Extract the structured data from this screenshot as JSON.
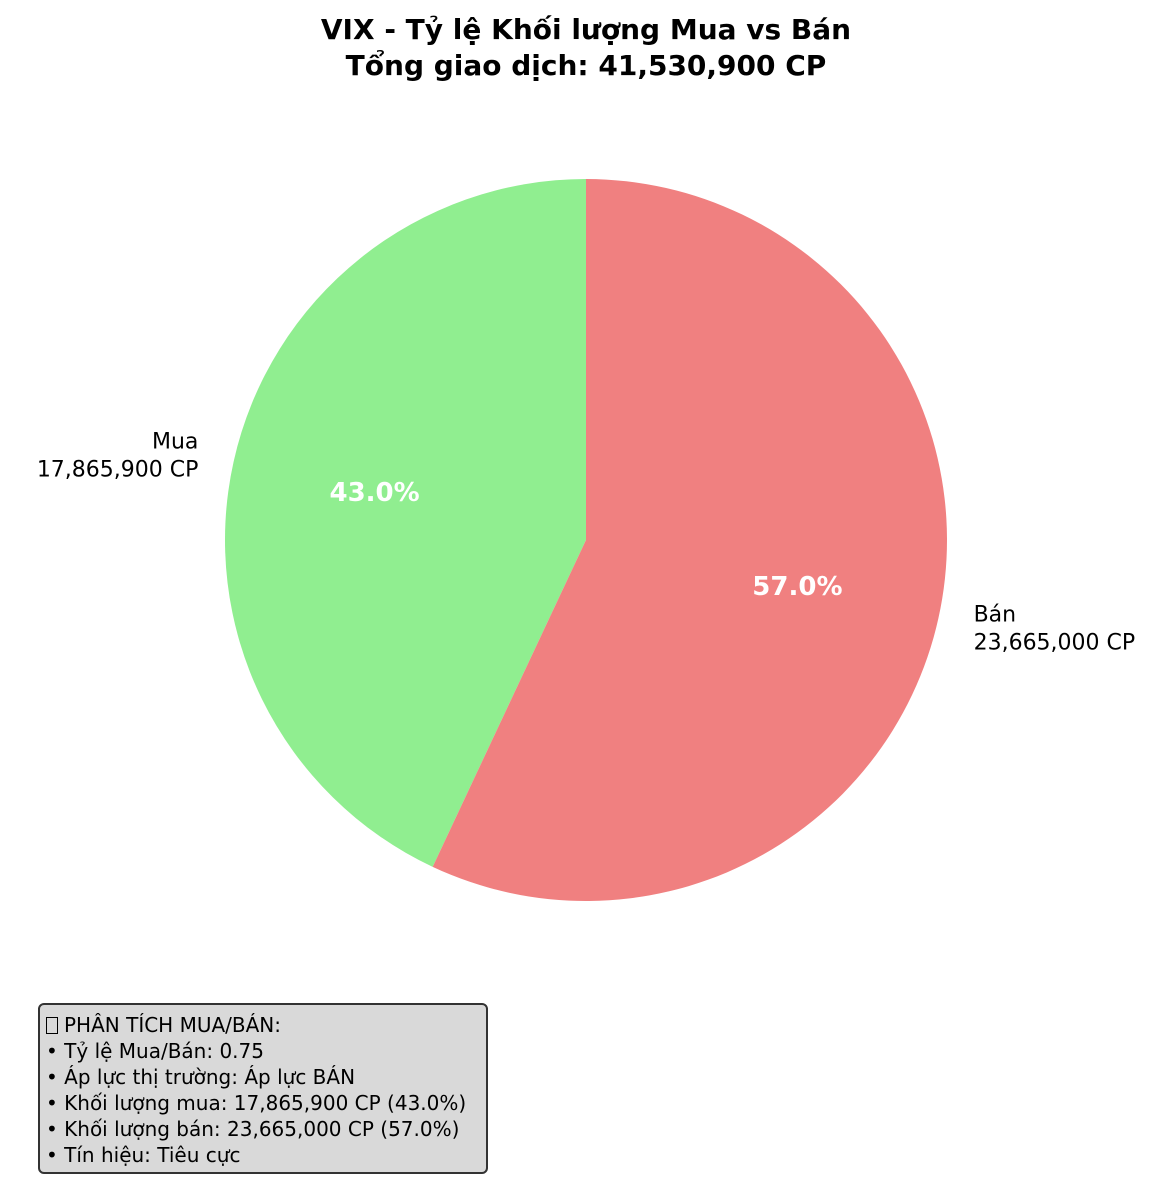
{
  "chart_data": {
    "type": "pie",
    "title": "VIX - Tỷ lệ Khối lượng Mua vs Bán",
    "subtitle": "Tổng giao dịch: 41,530,900 CP",
    "slices": [
      {
        "label": "Mua",
        "value": 17865900,
        "value_label": "17,865,900 CP",
        "percent_label": "43.0%",
        "color": "#90ee90"
      },
      {
        "label": "Bán",
        "value": 23665000,
        "value_label": "23,665,000 CP",
        "percent_label": "57.0%",
        "color": "#f08080"
      }
    ],
    "start_angle_deg": 90,
    "direction": "counterclockwise"
  },
  "analysis": {
    "icon": "chart-icon",
    "heading": "PHÂN TÍCH MUA/BÁN:",
    "lines": [
      "• Tỷ lệ Mua/Bán: 0.75",
      "• Áp lực thị trường: Áp lực BÁN",
      "• Khối lượng mua: 17,865,900 CP (43.0%)",
      "• Khối lượng bán: 23,665,000 CP (57.0%)",
      "• Tín hiệu: Tiêu cực"
    ]
  }
}
